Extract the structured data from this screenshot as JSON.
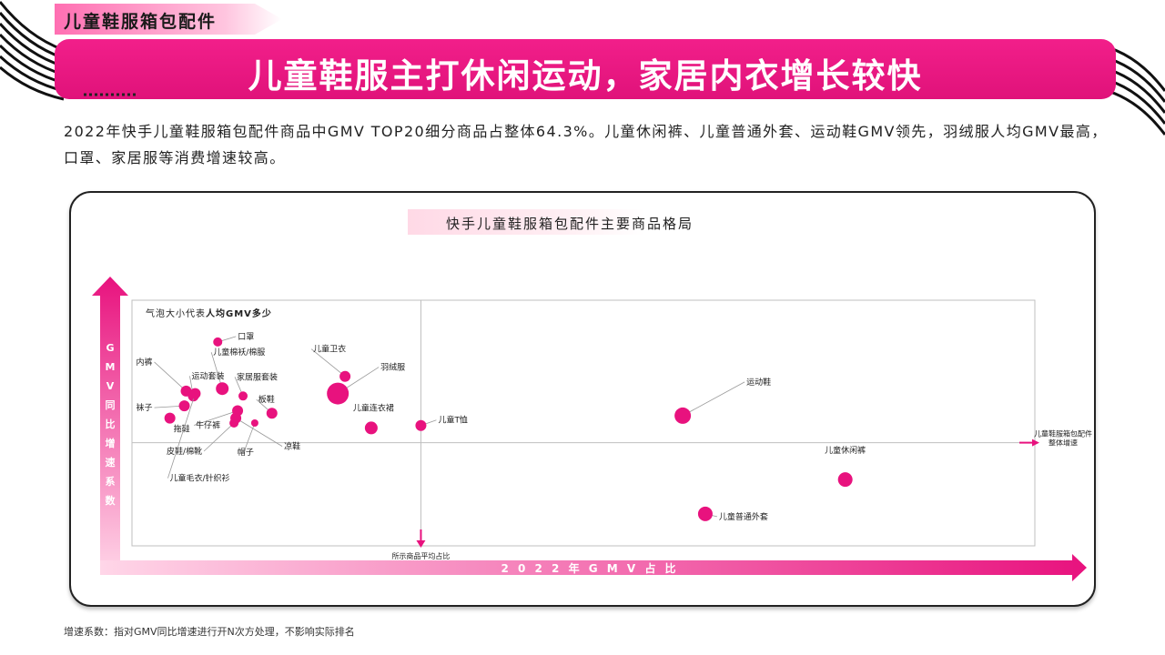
{
  "section_tag": "儿童鞋服箱包配件",
  "banner_title": "儿童鞋服主打休闲运动，家居内衣增长较快",
  "description": "2022年快手儿童鞋服箱包配件商品中GMV TOP20细分商品占整体64.3%。儿童休闲裤、儿童普通外套、运动鞋GMV领先，羽绒服人均GMV最高，口罩、家居服等消费增速较高。",
  "footnote": "增速系数：指对GMV同比增速进行开N次方处理，不影响实际排名",
  "colors": {
    "accent": "#e8127e",
    "accent_light": "#ffc5df"
  },
  "chart_data": {
    "type": "scatter",
    "title": "快手儿童鞋服箱包配件主要商品格局",
    "xlabel": "2022年GMV占比",
    "ylabel": "GMV同比增速系数",
    "legend_note_prefix": "气泡大小代表",
    "legend_note_bold": "人均GMV多少",
    "x_reference_label": "所示商品平均占比",
    "y_reference_label": "儿童鞋服箱包配件整体增速",
    "y_reference_label_lines": [
      "儿童鞋服箱包配件",
      "整体增速"
    ],
    "xlim": [
      0,
      100
    ],
    "ylim": [
      0,
      100
    ],
    "x_reference": 32,
    "y_reference": 42,
    "points": [
      {
        "name": "口罩",
        "x": 9.5,
        "y": 83,
        "size": 5
      },
      {
        "name": "儿童棉袄/棉服",
        "x": 10,
        "y": 64,
        "size": 7
      },
      {
        "name": "内裤",
        "x": 6,
        "y": 63,
        "size": 6
      },
      {
        "name": "运动套装",
        "x": 6.8,
        "y": 61,
        "size": 6
      },
      {
        "name": "袜子",
        "x": 5.8,
        "y": 57,
        "size": 6
      },
      {
        "name": "牛仔裤",
        "x": 11.7,
        "y": 55,
        "size": 6
      },
      {
        "name": "拖鞋",
        "x": 4.2,
        "y": 52,
        "size": 6
      },
      {
        "name": "家居服套装",
        "x": 12.3,
        "y": 61,
        "size": 5
      },
      {
        "name": "板鞋",
        "x": 15.5,
        "y": 54,
        "size": 6
      },
      {
        "name": "皮鞋/棉靴",
        "x": 11.3,
        "y": 50,
        "size": 5
      },
      {
        "name": "帽子",
        "x": 13.6,
        "y": 50,
        "size": 4
      },
      {
        "name": "凉鞋",
        "x": 11.5,
        "y": 52,
        "size": 6
      },
      {
        "name": "儿童毛衣/针织衫",
        "x": 7,
        "y": 62,
        "size": 6
      },
      {
        "name": "儿童卫衣",
        "x": 23.6,
        "y": 69,
        "size": 6
      },
      {
        "name": "羽绒服",
        "x": 22.8,
        "y": 62,
        "size": 12
      },
      {
        "name": "儿童连衣裙",
        "x": 26.5,
        "y": 48,
        "size": 7
      },
      {
        "name": "儿童T恤",
        "x": 32,
        "y": 49,
        "size": 6
      },
      {
        "name": "运动鞋",
        "x": 61,
        "y": 53,
        "size": 9
      },
      {
        "name": "儿童休闲裤",
        "x": 79,
        "y": 27,
        "size": 8
      },
      {
        "name": "儿童普通外套",
        "x": 63.5,
        "y": 13,
        "size": 8
      }
    ]
  }
}
